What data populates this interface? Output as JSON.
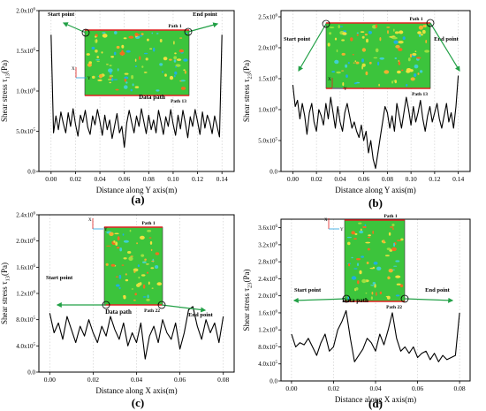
{
  "chart_data": [
    {
      "type": "line",
      "panel_label": "(a)",
      "ylabel_main": "Shear stress τ",
      "ylabel_sub": "13",
      "ylabel_unit": "(Pa)",
      "xlabel": "Distance along Y axis(m)",
      "xlim": [
        -0.01,
        0.15
      ],
      "ylim": [
        0,
        2000000
      ],
      "xticks": [
        "0.00",
        "0.02",
        "0.04",
        "0.06",
        "0.08",
        "0.10",
        "0.12",
        "0.14"
      ],
      "yticks": [
        {
          "base": "0.0",
          "exp": ""
        },
        {
          "base": "5.0x10",
          "exp": "5"
        },
        {
          "base": "1.0x10",
          "exp": "6"
        },
        {
          "base": "1.5x10",
          "exp": "6"
        },
        {
          "base": "2.0x10",
          "exp": "6"
        }
      ],
      "inset": {
        "top_label": "Path 1",
        "bottom_label": "Path 13",
        "caption": "Data path",
        "axis_x": "X",
        "axis_y": "Y"
      },
      "annotations": {
        "start": "Start point",
        "end": "End point"
      },
      "series": [
        {
          "x": [
            0,
            0.002,
            0.004,
            0.006,
            0.008,
            0.01,
            0.012,
            0.014,
            0.016,
            0.018,
            0.02,
            0.022,
            0.024,
            0.026,
            0.028,
            0.03,
            0.032,
            0.034,
            0.036,
            0.038,
            0.04,
            0.042,
            0.044,
            0.046,
            0.048,
            0.05,
            0.052,
            0.054,
            0.056,
            0.058,
            0.06,
            0.062,
            0.064,
            0.066,
            0.068,
            0.07,
            0.072,
            0.074,
            0.076,
            0.078,
            0.08,
            0.082,
            0.084,
            0.086,
            0.088,
            0.09,
            0.092,
            0.094,
            0.096,
            0.098,
            0.1,
            0.102,
            0.104,
            0.106,
            0.108,
            0.11,
            0.112,
            0.114,
            0.116,
            0.118,
            0.12,
            0.122,
            0.124,
            0.126,
            0.128,
            0.13,
            0.132,
            0.134,
            0.136,
            0.138,
            0.14
          ],
          "values": [
            1700000,
            480000,
            690000,
            520000,
            740000,
            600000,
            480000,
            730000,
            560000,
            780000,
            590000,
            440000,
            700000,
            610000,
            760000,
            550000,
            460000,
            690000,
            580000,
            770000,
            620000,
            450000,
            700000,
            520000,
            640000,
            410000,
            560000,
            720000,
            480000,
            560000,
            300000,
            600000,
            760000,
            610000,
            480000,
            690000,
            560000,
            780000,
            620000,
            470000,
            700000,
            520000,
            640000,
            480000,
            760000,
            620000,
            460000,
            680000,
            560000,
            770000,
            590000,
            450000,
            700000,
            530000,
            760000,
            600000,
            420000,
            680000,
            560000,
            770000,
            620000,
            460000,
            740000,
            540000,
            700000,
            610000,
            470000,
            690000,
            560000,
            430000,
            1700000
          ]
        }
      ]
    },
    {
      "type": "line",
      "panel_label": "(b)",
      "ylabel_main": "Shear stress τ",
      "ylabel_sub": "23",
      "ylabel_unit": "(Pa)",
      "xlabel": "Distance along Y axis(m)",
      "xlim": [
        -0.01,
        0.15
      ],
      "ylim": [
        0,
        2600000
      ],
      "xticks": [
        "0.00",
        "0.02",
        "0.04",
        "0.06",
        "0.08",
        "0.10",
        "0.12",
        "0.14"
      ],
      "yticks": [
        {
          "base": "0.0",
          "exp": ""
        },
        {
          "base": "5.0x10",
          "exp": "5"
        },
        {
          "base": "1.0x10",
          "exp": "6"
        },
        {
          "base": "1.5x10",
          "exp": "6"
        },
        {
          "base": "2.0x10",
          "exp": "6"
        },
        {
          "base": "2.5x10",
          "exp": "6"
        }
      ],
      "inset": {
        "top_label": "Path 1",
        "bottom_label": "Path 13",
        "caption": "",
        "axis_x": "X",
        "axis_y": "Y"
      },
      "annotations": {
        "start": "Start point",
        "end": "End point"
      },
      "series": [
        {
          "x": [
            0,
            0.002,
            0.004,
            0.006,
            0.008,
            0.01,
            0.012,
            0.014,
            0.016,
            0.018,
            0.02,
            0.022,
            0.024,
            0.026,
            0.028,
            0.03,
            0.032,
            0.034,
            0.036,
            0.038,
            0.04,
            0.042,
            0.044,
            0.046,
            0.048,
            0.05,
            0.052,
            0.054,
            0.056,
            0.058,
            0.06,
            0.062,
            0.064,
            0.066,
            0.068,
            0.07,
            0.072,
            0.074,
            0.076,
            0.078,
            0.08,
            0.082,
            0.084,
            0.086,
            0.088,
            0.09,
            0.092,
            0.094,
            0.096,
            0.098,
            0.1,
            0.102,
            0.104,
            0.106,
            0.108,
            0.11,
            0.112,
            0.114,
            0.116,
            0.118,
            0.12,
            0.122,
            0.124,
            0.126,
            0.128,
            0.13,
            0.132,
            0.134,
            0.136,
            0.138,
            0.14
          ],
          "values": [
            1400000,
            1050000,
            1150000,
            850000,
            1100000,
            900000,
            600000,
            950000,
            1100000,
            800000,
            650000,
            1000000,
            900000,
            750000,
            1100000,
            850000,
            1200000,
            950000,
            700000,
            1050000,
            800000,
            650000,
            950000,
            1100000,
            900000,
            700000,
            800000,
            650000,
            550000,
            750000,
            500000,
            650000,
            300000,
            500000,
            200000,
            50000,
            300000,
            550000,
            800000,
            1050000,
            950000,
            700000,
            900000,
            650000,
            1100000,
            900000,
            700000,
            950000,
            1200000,
            1000000,
            750000,
            1050000,
            800000,
            950000,
            1150000,
            850000,
            650000,
            900000,
            1050000,
            800000,
            950000,
            1100000,
            850000,
            700000,
            900000,
            1100000,
            800000,
            950000,
            700000,
            1050000,
            1550000
          ]
        }
      ]
    },
    {
      "type": "line",
      "panel_label": "(c)",
      "ylabel_main": "Shear stress τ",
      "ylabel_sub": "13",
      "ylabel_unit": "(Pa)",
      "xlabel": "Distance along X axis(m)",
      "xlim": [
        -0.005,
        0.085
      ],
      "ylim": [
        0,
        2400000
      ],
      "xticks": [
        "0.00",
        "0.02",
        "0.04",
        "0.06",
        "0.08"
      ],
      "yticks": [
        {
          "base": "0.0",
          "exp": ""
        },
        {
          "base": "4.0x10",
          "exp": "5"
        },
        {
          "base": "8.0x10",
          "exp": "5"
        },
        {
          "base": "1.2x10",
          "exp": "6"
        },
        {
          "base": "1.6x10",
          "exp": "6"
        },
        {
          "base": "2.0x10",
          "exp": "6"
        },
        {
          "base": "2.4x10",
          "exp": "6"
        }
      ],
      "inset": {
        "top_label": "Path 1",
        "bottom_label": "Path 22",
        "caption": "Data path",
        "axis_x": "X",
        "axis_y": "Y"
      },
      "annotations": {
        "start": "Start point",
        "end": "End point"
      },
      "series": [
        {
          "x": [
            0,
            0.002,
            0.004,
            0.006,
            0.008,
            0.01,
            0.012,
            0.014,
            0.016,
            0.018,
            0.02,
            0.022,
            0.024,
            0.026,
            0.028,
            0.03,
            0.032,
            0.034,
            0.036,
            0.038,
            0.04,
            0.042,
            0.044,
            0.046,
            0.048,
            0.05,
            0.052,
            0.054,
            0.056,
            0.058,
            0.06,
            0.062,
            0.064,
            0.066,
            0.068,
            0.07,
            0.072,
            0.074,
            0.076,
            0.078,
            0.08
          ],
          "values": [
            900000,
            600000,
            750000,
            500000,
            850000,
            650000,
            450000,
            700000,
            550000,
            800000,
            600000,
            450000,
            700000,
            550000,
            850000,
            650000,
            500000,
            750000,
            400000,
            600000,
            450000,
            750000,
            200000,
            550000,
            700000,
            450000,
            800000,
            600000,
            500000,
            750000,
            350000,
            600000,
            950000,
            1000000,
            700000,
            500000,
            800000,
            600000,
            750000,
            450000,
            850000
          ]
        }
      ]
    },
    {
      "type": "line",
      "panel_label": "(d)",
      "ylabel_main": "Shear stress τ",
      "ylabel_sub": "23",
      "ylabel_unit": "(Pa)",
      "xlabel": "Distance along X axis(m)",
      "xlim": [
        -0.005,
        0.085
      ],
      "ylim": [
        0,
        3800000
      ],
      "xticks": [
        "0.00",
        "0.02",
        "0.04",
        "0.06",
        "0.08"
      ],
      "yticks": [
        {
          "base": "0.0",
          "exp": ""
        },
        {
          "base": "4.0x10",
          "exp": "5"
        },
        {
          "base": "8.0x10",
          "exp": "5"
        },
        {
          "base": "1.2x10",
          "exp": "6"
        },
        {
          "base": "1.6x10",
          "exp": "6"
        },
        {
          "base": "2.0x10",
          "exp": "6"
        },
        {
          "base": "2.4x10",
          "exp": "6"
        },
        {
          "base": "2.8x10",
          "exp": "6"
        },
        {
          "base": "3.2x10",
          "exp": "6"
        },
        {
          "base": "3.6x10",
          "exp": "6"
        }
      ],
      "inset": {
        "top_label": "Path 1",
        "bottom_label": "Path 22",
        "caption": "Data path",
        "axis_x": "X",
        "axis_y": "Y"
      },
      "annotations": {
        "start": "Start point",
        "end": "End point"
      },
      "series": [
        {
          "x": [
            0,
            0.002,
            0.004,
            0.006,
            0.008,
            0.01,
            0.012,
            0.014,
            0.016,
            0.018,
            0.02,
            0.022,
            0.024,
            0.026,
            0.028,
            0.03,
            0.032,
            0.034,
            0.036,
            0.038,
            0.04,
            0.042,
            0.044,
            0.046,
            0.048,
            0.05,
            0.052,
            0.054,
            0.056,
            0.058,
            0.06,
            0.062,
            0.064,
            0.066,
            0.068,
            0.07,
            0.072,
            0.074,
            0.076,
            0.078,
            0.08
          ],
          "values": [
            1100000,
            800000,
            900000,
            850000,
            1000000,
            800000,
            600000,
            900000,
            1100000,
            700000,
            800000,
            1200000,
            1400000,
            1650000,
            1000000,
            450000,
            600000,
            750000,
            1000000,
            900000,
            700000,
            1100000,
            850000,
            1200000,
            1600000,
            1000000,
            700000,
            800000,
            650000,
            800000,
            550000,
            650000,
            700000,
            500000,
            650000,
            450000,
            600000,
            500000,
            550000,
            600000,
            1600000
          ]
        }
      ]
    }
  ]
}
